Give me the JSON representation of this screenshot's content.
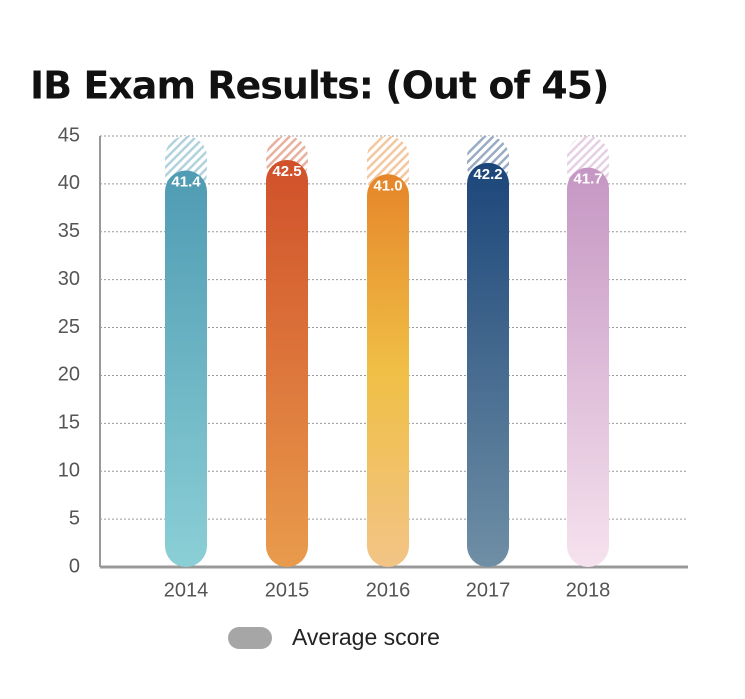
{
  "chart_data": {
    "type": "bar",
    "title": "IB Exam Results: (Out of 45)",
    "categories": [
      "2014",
      "2015",
      "2016",
      "2017",
      "2018"
    ],
    "series": [
      {
        "name": "Average score",
        "color": "#a6a6a6",
        "values": [
          41.4,
          42.5,
          41.0,
          42.2,
          41.7
        ],
        "value_labels": [
          "41.4",
          "42.5",
          "41.0",
          "42.2",
          "41.7"
        ]
      }
    ],
    "bar_colors": [
      [
        "#4f9bb3",
        "#8bcfd6"
      ],
      [
        "#d0502a",
        "#e99b4c"
      ],
      [
        "#e5852a",
        "#f0bf45",
        "#f2c486"
      ],
      [
        "#1c467a",
        "#6f8fa5"
      ],
      [
        "#c596c3",
        "#f6e2ee"
      ]
    ],
    "ylim": [
      0,
      45
    ],
    "yticks": [
      0,
      5,
      10,
      15,
      20,
      25,
      30,
      35,
      40,
      45
    ],
    "grid": true,
    "legend": "bottom"
  }
}
